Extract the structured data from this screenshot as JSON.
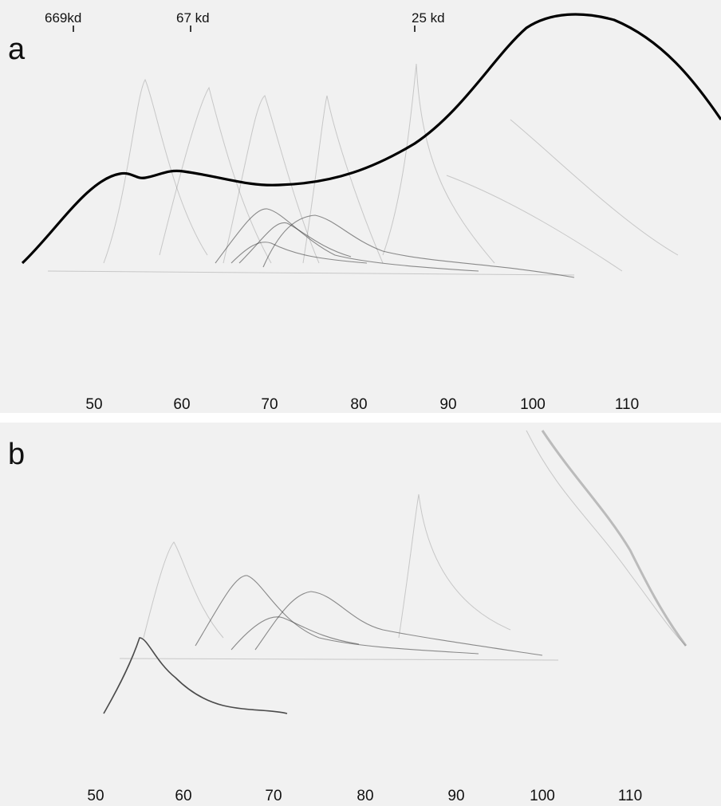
{
  "panels": [
    {
      "label": "a",
      "markers": [
        "669kd",
        "67 kd",
        "25 kd"
      ],
      "axis_labels": [
        "50",
        "60",
        "70",
        "80",
        "90",
        "100",
        "110"
      ]
    },
    {
      "label": "b",
      "axis_labels": [
        "50",
        "60",
        "70",
        "80",
        "90",
        "100",
        "110"
      ]
    }
  ]
}
